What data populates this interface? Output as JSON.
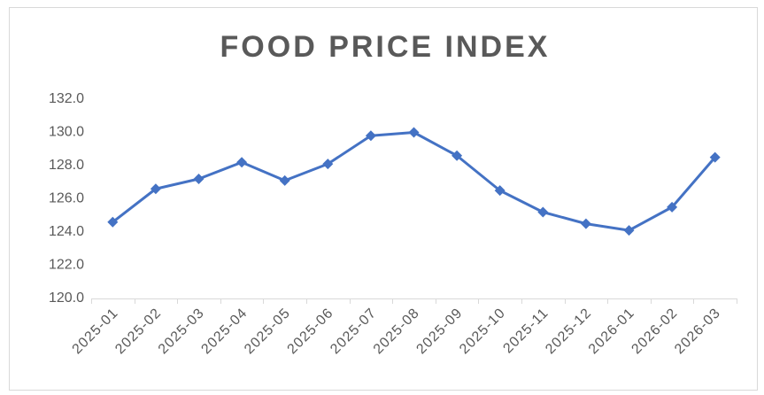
{
  "chart_data": {
    "type": "line",
    "title": "FOOD PRICE INDEX",
    "categories": [
      "2025-01",
      "2025-02",
      "2025-03",
      "2025-04",
      "2025-05",
      "2025-06",
      "2025-07",
      "2025-08",
      "2025-09",
      "2025-10",
      "2025-11",
      "2025-12",
      "2026-01",
      "2026-02",
      "2026-03"
    ],
    "values": [
      124.6,
      126.6,
      127.2,
      128.2,
      127.1,
      128.1,
      129.8,
      130.0,
      128.6,
      126.5,
      125.2,
      124.5,
      124.1,
      125.5,
      128.5
    ],
    "color": "#4472c4",
    "ylim": [
      120,
      132
    ],
    "yticks": [
      {
        "value": 120,
        "label": "120.0"
      },
      {
        "value": 122,
        "label": "122.0"
      },
      {
        "value": 124,
        "label": "124.0"
      },
      {
        "value": 126,
        "label": "126.0"
      },
      {
        "value": 128,
        "label": "128.0"
      },
      {
        "value": 130,
        "label": "130.0"
      },
      {
        "value": 132,
        "label": "132.0"
      }
    ],
    "grid": false
  }
}
